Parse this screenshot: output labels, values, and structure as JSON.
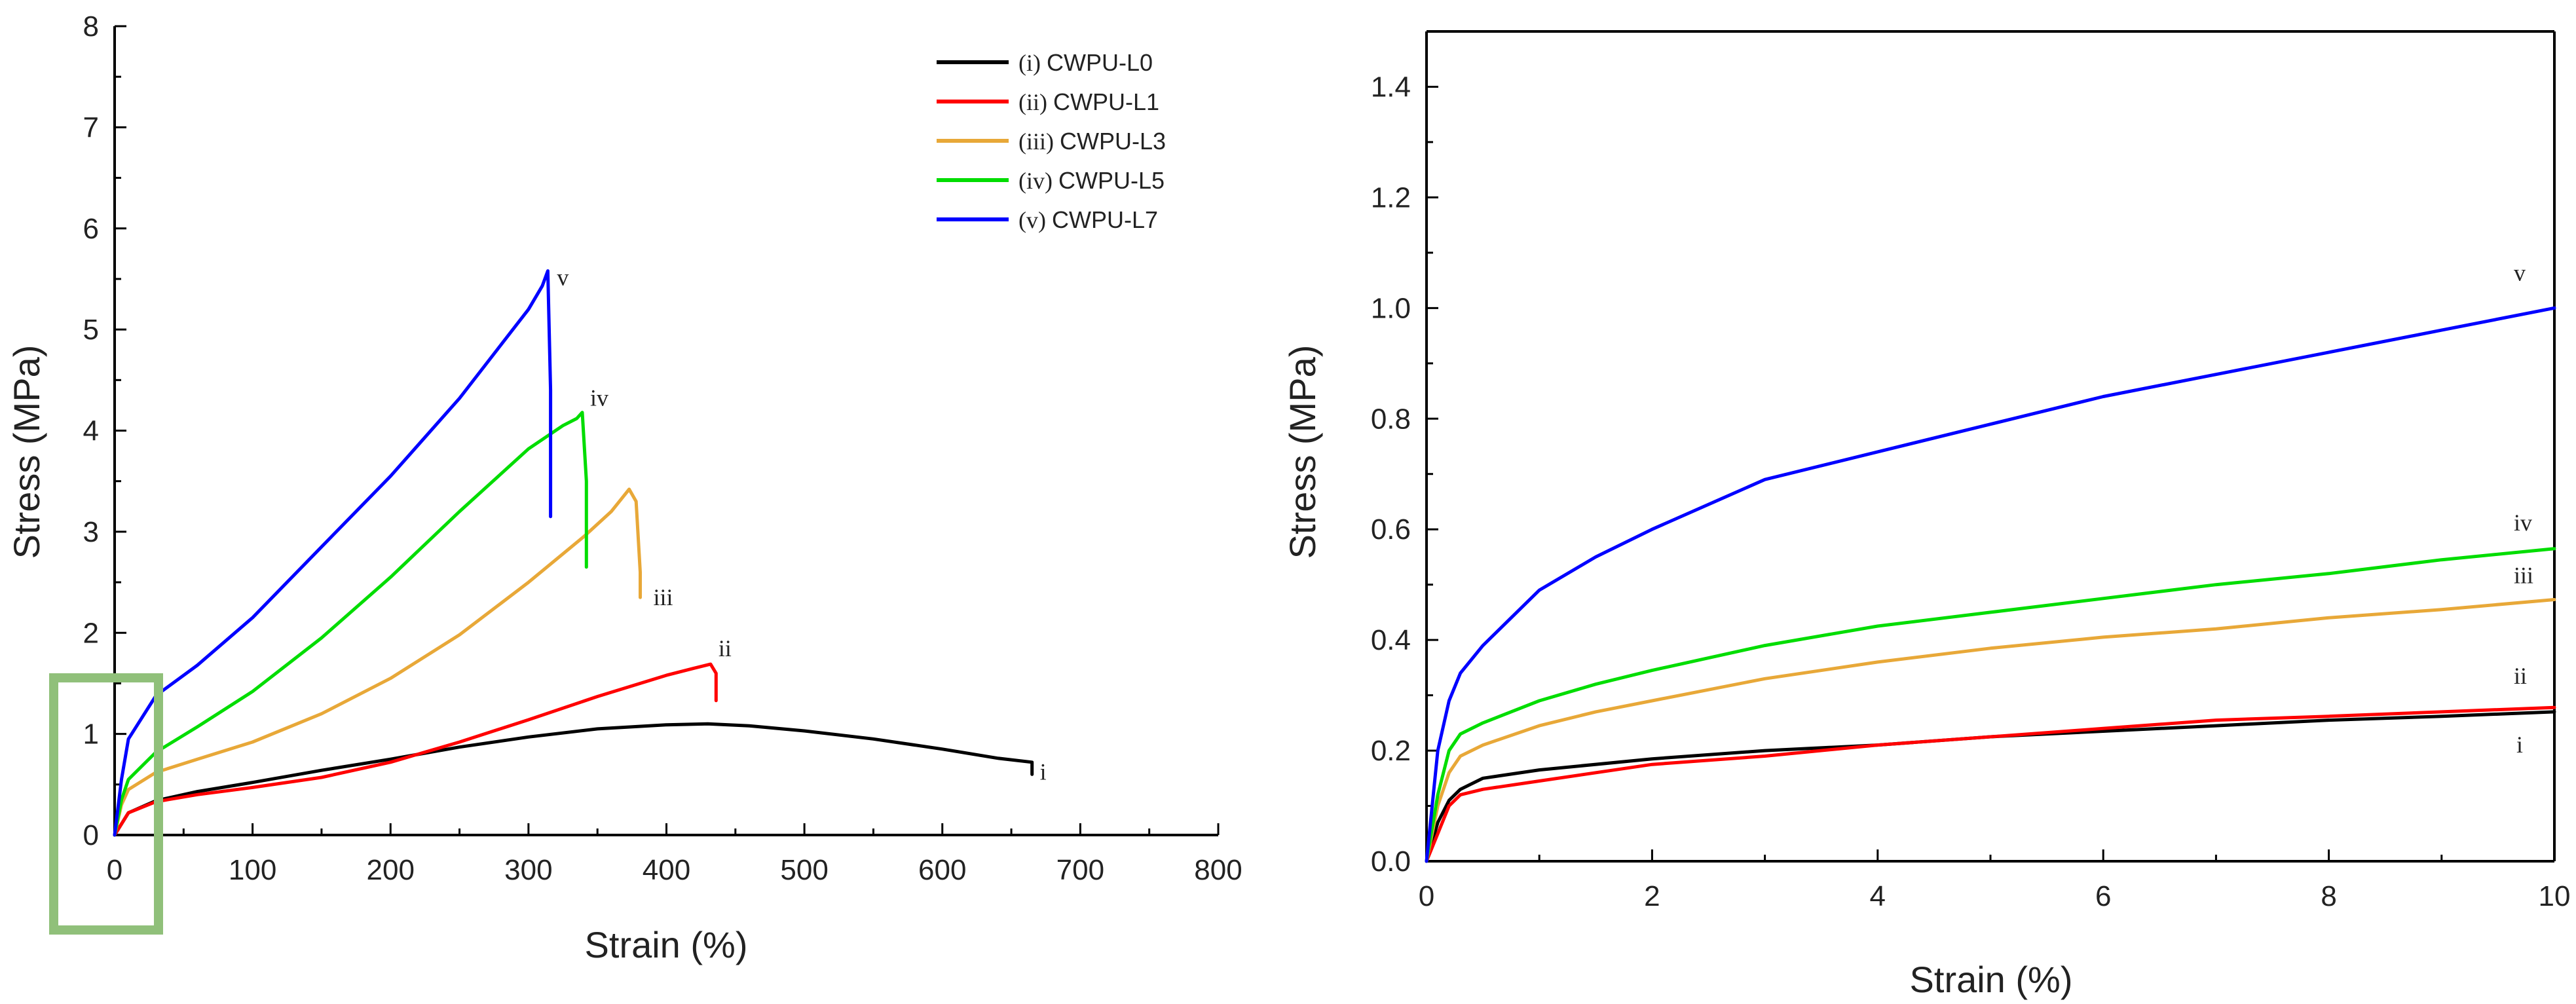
{
  "chart_data": [
    {
      "type": "line",
      "xlabel": "Strain (%)",
      "ylabel": "Stress (MPa)",
      "xlim": [
        0,
        800
      ],
      "ylim": [
        0,
        8
      ],
      "xticks": [
        0,
        100,
        200,
        300,
        400,
        500,
        600,
        700,
        800
      ],
      "yticks": [
        0,
        1,
        2,
        3,
        4,
        5,
        6,
        7,
        8
      ],
      "legend_position": "top-right",
      "highlight_box_color": "#90c07a",
      "series": [
        {
          "name": "CWPU-L0",
          "legend_roman": "(i)",
          "label": "i",
          "color": "#000000",
          "x": [
            0,
            10,
            30,
            60,
            100,
            150,
            200,
            250,
            300,
            350,
            400,
            430,
            460,
            500,
            550,
            600,
            640,
            665,
            665
          ],
          "y": [
            0,
            0.22,
            0.34,
            0.43,
            0.52,
            0.64,
            0.75,
            0.87,
            0.97,
            1.05,
            1.09,
            1.1,
            1.08,
            1.03,
            0.95,
            0.85,
            0.76,
            0.72,
            0.6
          ]
        },
        {
          "name": "CWPU-L1",
          "legend_roman": "(ii)",
          "label": "ii",
          "color": "#ff0000",
          "x": [
            0,
            10,
            30,
            60,
            100,
            150,
            200,
            250,
            300,
            350,
            400,
            420,
            432,
            436,
            436
          ],
          "y": [
            0,
            0.22,
            0.33,
            0.4,
            0.47,
            0.57,
            0.72,
            0.92,
            1.14,
            1.37,
            1.58,
            1.65,
            1.69,
            1.6,
            1.33
          ]
        },
        {
          "name": "CWPU-L3",
          "legend_roman": "(iii)",
          "label": "iii",
          "color": "#e8a838",
          "x": [
            0,
            5,
            10,
            30,
            60,
            100,
            150,
            200,
            250,
            300,
            340,
            360,
            373,
            378,
            381,
            381
          ],
          "y": [
            0,
            0.3,
            0.45,
            0.62,
            0.75,
            0.92,
            1.2,
            1.55,
            1.98,
            2.5,
            2.95,
            3.2,
            3.42,
            3.3,
            2.6,
            2.35
          ]
        },
        {
          "name": "CWPU-L5",
          "legend_roman": "(iv)",
          "label": "iv",
          "color": "#00dd00",
          "x": [
            0,
            5,
            10,
            30,
            60,
            100,
            150,
            200,
            250,
            300,
            325,
            335,
            339,
            342,
            342
          ],
          "y": [
            0,
            0.35,
            0.55,
            0.82,
            1.07,
            1.42,
            1.95,
            2.55,
            3.2,
            3.82,
            4.05,
            4.12,
            4.18,
            3.5,
            2.65
          ]
        },
        {
          "name": "CWPU-L7",
          "legend_roman": "(v)",
          "label": "v",
          "color": "#0000ff",
          "x": [
            0,
            5,
            10,
            30,
            60,
            100,
            150,
            200,
            250,
            300,
            310,
            314,
            316,
            316
          ],
          "y": [
            0,
            0.55,
            0.95,
            1.38,
            1.68,
            2.15,
            2.85,
            3.55,
            4.32,
            5.2,
            5.43,
            5.58,
            4.4,
            3.15
          ]
        }
      ]
    },
    {
      "type": "line",
      "xlabel": "Strain (%)",
      "ylabel": "Stress (MPa)",
      "xlim": [
        0,
        10
      ],
      "ylim": [
        0,
        1.5
      ],
      "xticks": [
        0,
        2,
        4,
        6,
        8,
        10
      ],
      "yticks": [
        0.0,
        0.2,
        0.4,
        0.6,
        0.8,
        1.0,
        1.2,
        1.4
      ],
      "ytick_labels": [
        "0.0",
        "0.2",
        "0.4",
        "0.6",
        "0.8",
        "1.0",
        "1.2",
        "1.4"
      ],
      "series": [
        {
          "name": "CWPU-L0",
          "label": "i",
          "color": "#000000",
          "x": [
            0,
            0.1,
            0.2,
            0.3,
            0.5,
            1,
            2,
            3,
            4,
            5,
            6,
            7,
            8,
            9,
            10
          ],
          "y": [
            0,
            0.07,
            0.11,
            0.13,
            0.15,
            0.165,
            0.185,
            0.2,
            0.21,
            0.225,
            0.235,
            0.245,
            0.255,
            0.262,
            0.27
          ]
        },
        {
          "name": "CWPU-L1",
          "label": "ii",
          "color": "#ff0000",
          "x": [
            0,
            0.1,
            0.2,
            0.3,
            0.5,
            1,
            2,
            3,
            4,
            5,
            6,
            7,
            8,
            9,
            10
          ],
          "y": [
            0,
            0.05,
            0.1,
            0.12,
            0.13,
            0.145,
            0.175,
            0.19,
            0.21,
            0.225,
            0.24,
            0.255,
            0.262,
            0.27,
            0.278
          ]
        },
        {
          "name": "CWPU-L3",
          "label": "iii",
          "color": "#e8a838",
          "x": [
            0,
            0.1,
            0.2,
            0.3,
            0.5,
            1,
            1.5,
            2,
            3,
            4,
            5,
            6,
            7,
            8,
            9,
            10
          ],
          "y": [
            0,
            0.1,
            0.16,
            0.19,
            0.21,
            0.245,
            0.27,
            0.29,
            0.33,
            0.36,
            0.385,
            0.405,
            0.42,
            0.44,
            0.455,
            0.473
          ]
        },
        {
          "name": "CWPU-L5",
          "label": "iv",
          "color": "#00dd00",
          "x": [
            0,
            0.1,
            0.2,
            0.3,
            0.5,
            1,
            1.5,
            2,
            3,
            4,
            5,
            6,
            7,
            8,
            9,
            10
          ],
          "y": [
            0,
            0.12,
            0.2,
            0.23,
            0.25,
            0.29,
            0.32,
            0.345,
            0.39,
            0.425,
            0.45,
            0.475,
            0.5,
            0.52,
            0.545,
            0.565
          ]
        },
        {
          "name": "CWPU-L7",
          "label": "v",
          "color": "#0000ff",
          "x": [
            0,
            0.1,
            0.2,
            0.3,
            0.5,
            0.75,
            1,
            1.5,
            2,
            3,
            4,
            5,
            6,
            7,
            8,
            9,
            10
          ],
          "y": [
            0,
            0.2,
            0.29,
            0.34,
            0.39,
            0.44,
            0.49,
            0.55,
            0.6,
            0.69,
            0.74,
            0.79,
            0.84,
            0.88,
            0.92,
            0.96,
            1.0
          ]
        }
      ]
    }
  ]
}
